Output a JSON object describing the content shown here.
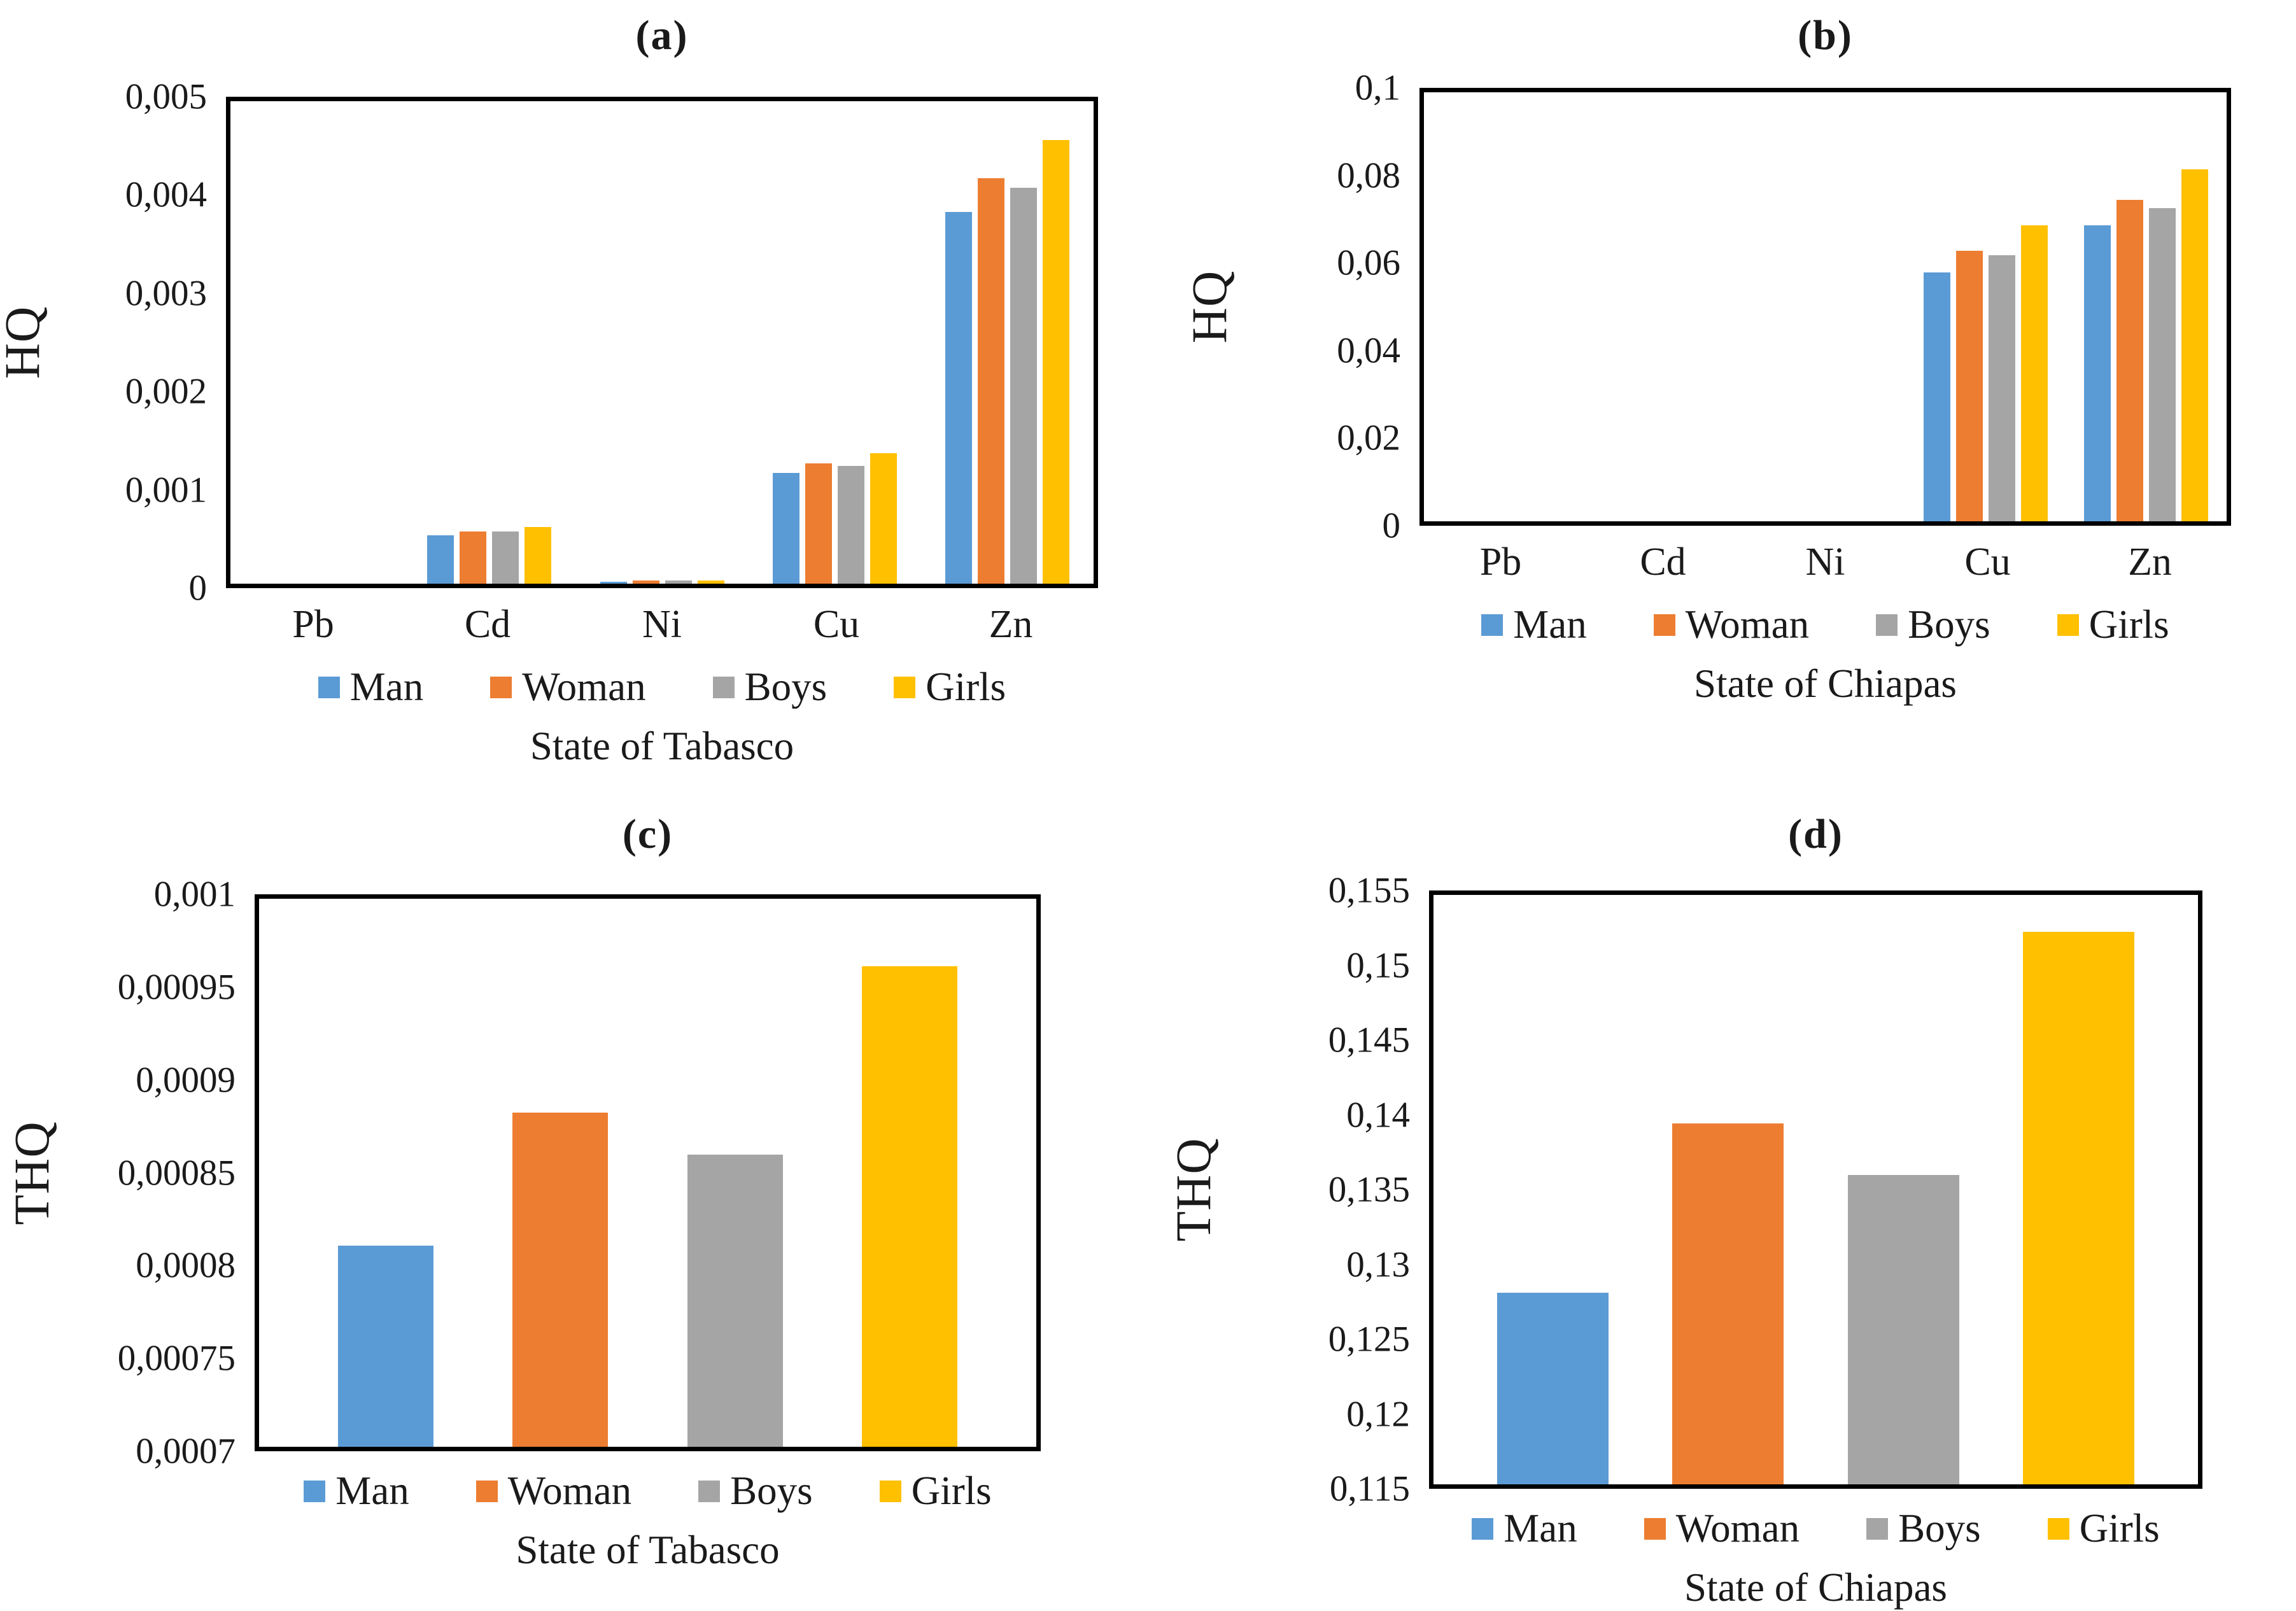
{
  "chart_data": [
    {
      "type": "bar",
      "panel": "a",
      "title": "(a)",
      "ylabel": "HQ",
      "xlabel": "State of Tabasco",
      "grid": false,
      "legend_position": "bottom",
      "y_min": 0,
      "y_max": 0.005,
      "y_ticks": [
        {
          "value": 0,
          "label": "0"
        },
        {
          "value": 0.001,
          "label": "0,001"
        },
        {
          "value": 0.002,
          "label": "0,002"
        },
        {
          "value": 0.003,
          "label": "0,003"
        },
        {
          "value": 0.004,
          "label": "0,004"
        },
        {
          "value": 0.005,
          "label": "0,005"
        }
      ],
      "categories": [
        "Pb",
        "Cd",
        "Ni",
        "Cu",
        "Zn"
      ],
      "series": [
        {
          "name": "Man",
          "color": "#5B9BD5",
          "values": [
            0,
            0.0005,
            2e-05,
            0.00115,
            0.00385
          ]
        },
        {
          "name": "Woman",
          "color": "#ED7D31",
          "values": [
            0,
            0.00054,
            3e-05,
            0.00125,
            0.0042
          ]
        },
        {
          "name": "Boys",
          "color": "#A5A5A5",
          "values": [
            0,
            0.00054,
            3e-05,
            0.00122,
            0.0041
          ]
        },
        {
          "name": "Girls",
          "color": "#FFC000",
          "values": [
            0,
            0.00059,
            3e-05,
            0.00135,
            0.0046
          ]
        }
      ]
    },
    {
      "type": "bar",
      "panel": "b",
      "title": "(b)",
      "ylabel": "HQ",
      "xlabel": "State of Chiapas",
      "grid": false,
      "legend_position": "bottom",
      "y_min": 0,
      "y_max": 0.1,
      "y_ticks": [
        {
          "value": 0,
          "label": "0"
        },
        {
          "value": 0.02,
          "label": "0,02"
        },
        {
          "value": 0.04,
          "label": "0,04"
        },
        {
          "value": 0.06,
          "label": "0,06"
        },
        {
          "value": 0.08,
          "label": "0,08"
        },
        {
          "value": 0.1,
          "label": "0,1"
        }
      ],
      "categories": [
        "Pb",
        "Cd",
        "Ni",
        "Cu",
        "Zn"
      ],
      "series": [
        {
          "name": "Man",
          "color": "#5B9BD5",
          "values": [
            0,
            0,
            0,
            0.058,
            0.069
          ]
        },
        {
          "name": "Woman",
          "color": "#ED7D31",
          "values": [
            0,
            0,
            0,
            0.063,
            0.075
          ]
        },
        {
          "name": "Boys",
          "color": "#A5A5A5",
          "values": [
            0,
            0,
            0,
            0.062,
            0.073
          ]
        },
        {
          "name": "Girls",
          "color": "#FFC000",
          "values": [
            0,
            0,
            0,
            0.069,
            0.082
          ]
        }
      ]
    },
    {
      "type": "bar",
      "panel": "c",
      "title": "(c)",
      "ylabel": "THQ",
      "xlabel": "State of Tabasco",
      "grid": false,
      "legend_position": "bottom",
      "y_min": 0.0007,
      "y_max": 0.001,
      "y_ticks": [
        {
          "value": 0.0007,
          "label": "0,0007"
        },
        {
          "value": 0.00075,
          "label": "0,00075"
        },
        {
          "value": 0.0008,
          "label": "0,0008"
        },
        {
          "value": 0.00085,
          "label": "0,00085"
        },
        {
          "value": 0.0009,
          "label": "0,0009"
        },
        {
          "value": 0.00095,
          "label": "0,00095"
        },
        {
          "value": 0.001,
          "label": "0,001"
        }
      ],
      "categories": [
        "Man",
        "Woman",
        "Boys",
        "Girls"
      ],
      "series": [
        {
          "name": "Man",
          "color": "#5B9BD5",
          "value": 0.00081
        },
        {
          "name": "Woman",
          "color": "#ED7D31",
          "value": 0.000883
        },
        {
          "name": "Boys",
          "color": "#A5A5A5",
          "value": 0.00086
        },
        {
          "name": "Girls",
          "color": "#FFC000",
          "value": 0.000963
        }
      ]
    },
    {
      "type": "bar",
      "panel": "d",
      "title": "(d)",
      "ylabel": "THQ",
      "xlabel": "State of Chiapas",
      "grid": false,
      "legend_position": "bottom",
      "y_min": 0.115,
      "y_max": 0.155,
      "y_ticks": [
        {
          "value": 0.115,
          "label": "0,115"
        },
        {
          "value": 0.12,
          "label": "0,12"
        },
        {
          "value": 0.125,
          "label": "0,125"
        },
        {
          "value": 0.13,
          "label": "0,13"
        },
        {
          "value": 0.135,
          "label": "0,135"
        },
        {
          "value": 0.14,
          "label": "0,14"
        },
        {
          "value": 0.145,
          "label": "0,145"
        },
        {
          "value": 0.15,
          "label": "0,15"
        },
        {
          "value": 0.155,
          "label": "0,155"
        }
      ],
      "categories": [
        "Man",
        "Woman",
        "Boys",
        "Girls"
      ],
      "series": [
        {
          "name": "Man",
          "color": "#5B9BD5",
          "value": 0.128
        },
        {
          "name": "Woman",
          "color": "#ED7D31",
          "value": 0.1395
        },
        {
          "name": "Boys",
          "color": "#A5A5A5",
          "value": 0.136
        },
        {
          "name": "Girls",
          "color": "#FFC000",
          "value": 0.1525
        }
      ]
    }
  ]
}
